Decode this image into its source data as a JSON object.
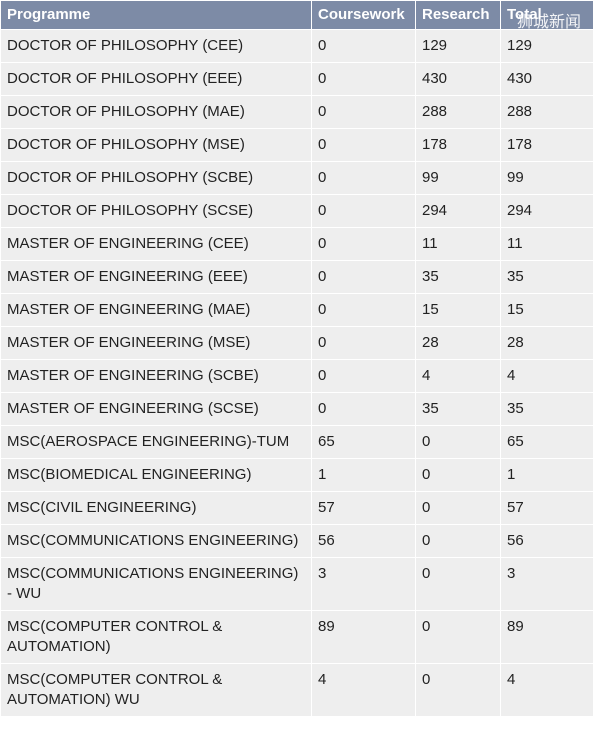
{
  "watermark": "狮城新闻",
  "table": {
    "header": [
      "Programme",
      "Coursework",
      "Research",
      "Total"
    ],
    "rows": [
      [
        "DOCTOR OF PHILOSOPHY (CEE)",
        0,
        129,
        129
      ],
      [
        "DOCTOR OF PHILOSOPHY (EEE)",
        0,
        430,
        430
      ],
      [
        "DOCTOR OF PHILOSOPHY (MAE)",
        0,
        288,
        288
      ],
      [
        "DOCTOR OF PHILOSOPHY (MSE)",
        0,
        178,
        178
      ],
      [
        "DOCTOR OF PHILOSOPHY (SCBE)",
        0,
        99,
        99
      ],
      [
        "DOCTOR OF PHILOSOPHY (SCSE)",
        0,
        294,
        294
      ],
      [
        "MASTER OF ENGINEERING (CEE)",
        0,
        11,
        11
      ],
      [
        "MASTER OF ENGINEERING (EEE)",
        0,
        35,
        35
      ],
      [
        "MASTER OF ENGINEERING (MAE)",
        0,
        15,
        15
      ],
      [
        "MASTER OF ENGINEERING (MSE)",
        0,
        28,
        28
      ],
      [
        "MASTER OF ENGINEERING (SCBE)",
        0,
        4,
        4
      ],
      [
        "MASTER OF ENGINEERING (SCSE)",
        0,
        35,
        35
      ],
      [
        "MSC(AEROSPACE ENGINEERING)-TUM",
        65,
        0,
        65
      ],
      [
        "MSC(BIOMEDICAL ENGINEERING)",
        1,
        0,
        1
      ],
      [
        "MSC(CIVIL ENGINEERING)",
        57,
        0,
        57
      ],
      [
        "MSC(COMMUNICATIONS ENGINEERING)",
        56,
        0,
        56
      ],
      [
        "MSC(COMMUNICATIONS ENGINEERING) - WU",
        3,
        0,
        3
      ],
      [
        "MSC(COMPUTER CONTROL & AUTOMATION)",
        89,
        0,
        89
      ],
      [
        "MSC(COMPUTER CONTROL & AUTOMATION) WU",
        4,
        0,
        4
      ]
    ]
  }
}
